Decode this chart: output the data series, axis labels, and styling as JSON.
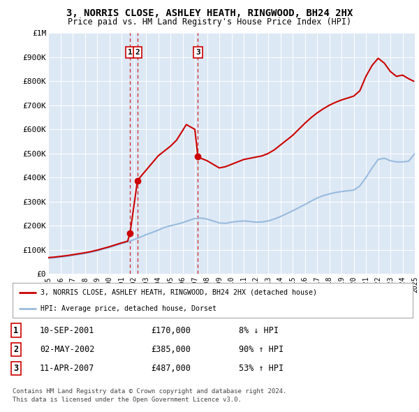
{
  "title": "3, NORRIS CLOSE, ASHLEY HEATH, RINGWOOD, BH24 2HX",
  "subtitle": "Price paid vs. HM Land Registry's House Price Index (HPI)",
  "legend_house": "3, NORRIS CLOSE, ASHLEY HEATH, RINGWOOD, BH24 2HX (detached house)",
  "legend_hpi": "HPI: Average price, detached house, Dorset",
  "footer1": "Contains HM Land Registry data © Crown copyright and database right 2024.",
  "footer2": "This data is licensed under the Open Government Licence v3.0.",
  "transactions": [
    {
      "num": 1,
      "date": "10-SEP-2001",
      "price": "£170,000",
      "hpi": "8% ↓ HPI"
    },
    {
      "num": 2,
      "date": "02-MAY-2002",
      "price": "£385,000",
      "hpi": "90% ↑ HPI"
    },
    {
      "num": 3,
      "date": "11-APR-2007",
      "price": "£487,000",
      "hpi": "53% ↑ HPI"
    }
  ],
  "sale_points": [
    {
      "year": 2001.7,
      "price": 170000,
      "label": "1"
    },
    {
      "year": 2002.3,
      "price": 385000,
      "label": "2"
    },
    {
      "year": 2007.25,
      "price": 487000,
      "label": "3"
    }
  ],
  "hpi_line": {
    "years": [
      1995.0,
      1995.5,
      1996.0,
      1996.5,
      1997.0,
      1997.5,
      1998.0,
      1998.5,
      1999.0,
      1999.5,
      2000.0,
      2000.5,
      2001.0,
      2001.5,
      2002.0,
      2002.5,
      2003.0,
      2003.5,
      2004.0,
      2004.5,
      2005.0,
      2005.5,
      2006.0,
      2006.5,
      2007.0,
      2007.5,
      2008.0,
      2008.5,
      2009.0,
      2009.5,
      2010.0,
      2010.5,
      2011.0,
      2011.5,
      2012.0,
      2012.5,
      2013.0,
      2013.5,
      2014.0,
      2014.5,
      2015.0,
      2015.5,
      2016.0,
      2016.5,
      2017.0,
      2017.5,
      2018.0,
      2018.5,
      2019.0,
      2019.5,
      2020.0,
      2020.5,
      2021.0,
      2021.5,
      2022.0,
      2022.5,
      2023.0,
      2023.5,
      2024.0,
      2024.5,
      2025.0
    ],
    "values": [
      65000,
      67000,
      70000,
      73000,
      77000,
      81000,
      85000,
      90000,
      96000,
      103000,
      110000,
      118000,
      126000,
      133000,
      142000,
      152000,
      163000,
      172000,
      182000,
      193000,
      200000,
      206000,
      213000,
      222000,
      230000,
      232000,
      228000,
      220000,
      212000,
      210000,
      215000,
      218000,
      220000,
      218000,
      215000,
      216000,
      220000,
      228000,
      238000,
      250000,
      262000,
      275000,
      288000,
      302000,
      315000,
      325000,
      332000,
      338000,
      342000,
      345000,
      348000,
      365000,
      400000,
      440000,
      475000,
      480000,
      470000,
      465000,
      465000,
      468000,
      500000
    ]
  },
  "house_line": {
    "years": [
      1995.0,
      1995.5,
      1996.0,
      1996.5,
      1997.0,
      1997.5,
      1998.0,
      1998.5,
      1999.0,
      1999.5,
      2000.0,
      2000.5,
      2001.0,
      2001.5,
      2001.7,
      2002.3,
      2002.5,
      2003.0,
      2003.5,
      2004.0,
      2004.5,
      2005.0,
      2005.5,
      2006.0,
      2006.3,
      2007.0,
      2007.25,
      2007.5,
      2008.0,
      2008.5,
      2009.0,
      2009.5,
      2010.0,
      2010.5,
      2011.0,
      2011.5,
      2012.0,
      2012.5,
      2013.0,
      2013.5,
      2014.0,
      2014.5,
      2015.0,
      2015.5,
      2016.0,
      2016.5,
      2017.0,
      2017.5,
      2018.0,
      2018.5,
      2019.0,
      2019.5,
      2020.0,
      2020.5,
      2021.0,
      2021.5,
      2022.0,
      2022.5,
      2023.0,
      2023.5,
      2024.0,
      2024.5,
      2024.9
    ],
    "values": [
      68000,
      70000,
      73000,
      76000,
      80000,
      84000,
      88000,
      93000,
      99000,
      106000,
      113000,
      121000,
      129000,
      136000,
      170000,
      385000,
      400000,
      430000,
      460000,
      490000,
      510000,
      530000,
      555000,
      595000,
      620000,
      600000,
      487000,
      480000,
      470000,
      455000,
      440000,
      445000,
      455000,
      465000,
      475000,
      480000,
      485000,
      490000,
      500000,
      515000,
      535000,
      555000,
      575000,
      600000,
      625000,
      648000,
      668000,
      685000,
      700000,
      712000,
      722000,
      730000,
      738000,
      760000,
      820000,
      865000,
      895000,
      875000,
      840000,
      820000,
      825000,
      810000,
      800000
    ]
  },
  "house_line_color": "#cc0000",
  "hpi_line_color": "#99bbdd",
  "plot_bg_color": "#dde8f5",
  "ylim": [
    0,
    1000000
  ],
  "xlim": [
    1995,
    2025
  ],
  "yticks": [
    0,
    100000,
    200000,
    300000,
    400000,
    500000,
    600000,
    700000,
    800000,
    900000,
    1000000
  ],
  "ytick_labels": [
    "£0",
    "£100K",
    "£200K",
    "£300K",
    "£400K",
    "£500K",
    "£600K",
    "£700K",
    "£800K",
    "£900K",
    "£1M"
  ],
  "xtick_labels": [
    "1995",
    "1996",
    "1997",
    "1998",
    "1999",
    "2000",
    "2001",
    "2002",
    "2003",
    "2004",
    "2005",
    "2006",
    "2007",
    "2008",
    "2009",
    "2010",
    "2011",
    "2012",
    "2013",
    "2014",
    "2015",
    "2016",
    "2017",
    "2018",
    "2019",
    "2020",
    "2021",
    "2022",
    "2023",
    "2024",
    "2025"
  ]
}
